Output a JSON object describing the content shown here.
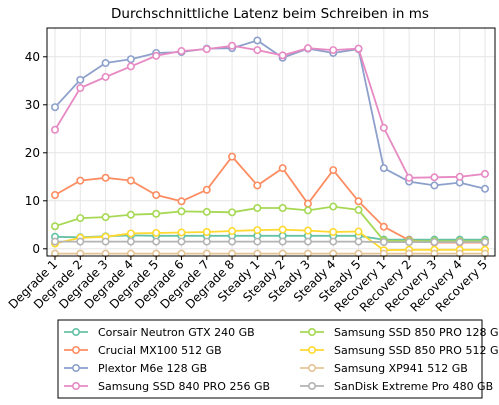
{
  "chart_data": {
    "type": "line",
    "title": "Durchschnittliche Latenz beim Schreiben in ms",
    "xlabel": "",
    "ylabel": "",
    "categories": [
      "Degrade 1",
      "Degrade 2",
      "Degrade 3",
      "Degrade 4",
      "Degrade 5",
      "Degrade 6",
      "Degrade 7",
      "Degrade 8",
      "Steady 1",
      "Steady 2",
      "Steady 3",
      "Steady 4",
      "Steady 5",
      "Recovery 1",
      "Recovery 2",
      "Recovery 3",
      "Recovery 4",
      "Recovery 5"
    ],
    "ylim": [
      -1.5,
      46
    ],
    "yticks": [
      0,
      10,
      20,
      30,
      40
    ],
    "grid": true,
    "legend_position": "bottom",
    "series": [
      {
        "name": "Corsair Neutron GTX 240 GB",
        "color": "#66c2a5",
        "values": [
          2.5,
          2.4,
          2.6,
          2.8,
          2.7,
          2.7,
          2.7,
          2.7,
          2.7,
          2.7,
          2.7,
          2.7,
          2.7,
          1.9,
          1.9,
          1.9,
          1.9,
          1.9
        ]
      },
      {
        "name": "Crucial MX100 512 GB",
        "color": "#fc8d62",
        "values": [
          11.2,
          14.2,
          14.8,
          14.2,
          11.2,
          9.9,
          12.3,
          19.2,
          13.2,
          16.8,
          9.4,
          16.4,
          9.9,
          4.6,
          1.8,
          1.3,
          1.3,
          1.3
        ]
      },
      {
        "name": "Plextor M6e 128 GB",
        "color": "#8da0cb",
        "values": [
          29.5,
          35.2,
          38.7,
          39.5,
          40.8,
          41.0,
          41.7,
          41.8,
          43.4,
          39.8,
          41.7,
          40.8,
          41.6,
          16.8,
          14.0,
          13.2,
          13.8,
          12.5
        ]
      },
      {
        "name": "Samsung SSD 840 PRO 256 GB",
        "color": "#e78ac3",
        "values": [
          24.8,
          33.5,
          35.8,
          38.0,
          40.2,
          41.2,
          41.6,
          42.3,
          41.4,
          40.3,
          41.8,
          41.4,
          41.7,
          25.2,
          14.8,
          14.9,
          15.0,
          15.6
        ]
      },
      {
        "name": "Samsung SSD 850 PRO 128 GB",
        "color": "#a6d854",
        "values": [
          4.7,
          6.4,
          6.6,
          7.1,
          7.3,
          7.8,
          7.7,
          7.6,
          8.5,
          8.5,
          8.0,
          8.8,
          8.1,
          1.7,
          1.6,
          1.6,
          1.6,
          1.6
        ]
      },
      {
        "name": "Samsung SSD 850 PRO 512 GB",
        "color": "#ffd92f",
        "values": [
          1.1,
          2.3,
          2.5,
          3.2,
          3.3,
          3.4,
          3.5,
          3.7,
          3.9,
          4.0,
          3.8,
          3.5,
          3.6,
          -0.3,
          -0.2,
          -0.2,
          -0.2,
          -0.2
        ]
      },
      {
        "name": "Samsung XP941 512 GB",
        "color": "#e5c494",
        "values": [
          -1.0,
          -1.0,
          -1.0,
          -1.0,
          -1.0,
          -1.0,
          -1.0,
          -1.0,
          -1.0,
          -1.0,
          -1.0,
          -1.0,
          -1.0,
          -1.0,
          -1.0,
          -1.0,
          -1.0,
          -1.0
        ]
      },
      {
        "name": "SanDisk Extreme Pro 480 GB",
        "color": "#b3b3b3",
        "values": [
          1.5,
          1.5,
          1.5,
          1.5,
          1.5,
          1.5,
          1.5,
          1.5,
          1.5,
          1.5,
          1.5,
          1.5,
          1.5,
          1.4,
          1.4,
          1.4,
          1.4,
          1.4
        ]
      }
    ]
  }
}
